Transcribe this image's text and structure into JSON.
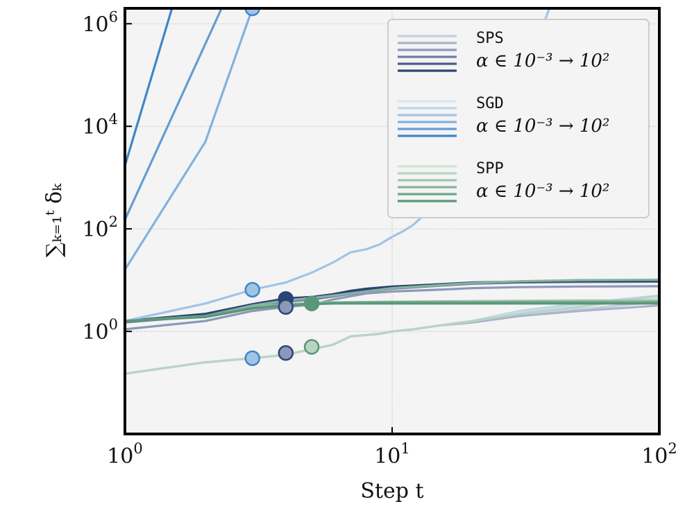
{
  "chart_data": {
    "type": "line",
    "title": "",
    "xlabel": "Step t",
    "ylabel": "∑ₖ₌₁ᵗ δₖ",
    "xscale": "log",
    "yscale": "log",
    "xlim": [
      1,
      100
    ],
    "ylim": [
      0.01,
      2000000
    ],
    "grid": true,
    "legend_position": "top-right",
    "x_ticks": [
      {
        "value": 1,
        "base": "10",
        "exp": "0"
      },
      {
        "value": 10,
        "base": "10",
        "exp": "1"
      },
      {
        "value": 100,
        "base": "10",
        "exp": "2"
      }
    ],
    "y_ticks": [
      {
        "value": 1,
        "base": "10",
        "exp": "0"
      },
      {
        "value": 100,
        "base": "10",
        "exp": "2"
      },
      {
        "value": 10000,
        "base": "10",
        "exp": "4"
      },
      {
        "value": 1000000,
        "base": "10",
        "exp": "6"
      }
    ],
    "legend": [
      {
        "method": "SPS",
        "range_text": "α ∈ 10⁻³ → 10²",
        "colors": [
          "#c5cde0",
          "#a9b3cc",
          "#8c98b7",
          "#6c7ba0",
          "#4a5c89",
          "#2b4477"
        ]
      },
      {
        "method": "SGD",
        "range_text": "α ∈ 10⁻³ → 10²",
        "colors": [
          "#d6e6f4",
          "#bcd6ee",
          "#a0c4e6",
          "#82b1dd",
          "#629dd3",
          "#3f86c7"
        ]
      },
      {
        "method": "SPP",
        "range_text": "α ∈ 10⁻³ → 10²",
        "colors": [
          "#cfe3d7",
          "#b8d4c4",
          "#9fc4b0",
          "#86b39c",
          "#6fa488",
          "#5a9678"
        ]
      }
    ],
    "series": [
      {
        "group": "SPS",
        "color": "#c5cde0",
        "x": [
          1,
          2,
          3,
          4,
          5,
          6,
          7,
          8,
          9,
          10,
          12,
          15,
          20,
          30,
          50,
          100
        ],
        "y": [
          0.15,
          0.25,
          0.3,
          0.35,
          0.45,
          0.55,
          0.8,
          0.85,
          0.9,
          1.0,
          1.1,
          1.3,
          1.5,
          2.0,
          2.7,
          3.8
        ]
      },
      {
        "group": "SPS",
        "color": "#a9b3cc",
        "x": [
          1,
          2,
          3,
          4,
          5,
          6,
          7,
          8,
          9,
          10,
          12,
          15,
          20,
          30,
          50,
          100
        ],
        "y": [
          0.15,
          0.25,
          0.3,
          0.35,
          0.45,
          0.55,
          0.8,
          0.85,
          0.9,
          1.0,
          1.1,
          1.3,
          1.5,
          2.0,
          2.5,
          3.2
        ]
      },
      {
        "group": "SPS",
        "color": "#8c98b7",
        "x": [
          1,
          2,
          3,
          4,
          5,
          6,
          8,
          10,
          15,
          20,
          30,
          50,
          100
        ],
        "y": [
          1.1,
          1.6,
          2.5,
          3.0,
          3.3,
          4.2,
          5.5,
          6.0,
          6.5,
          7.0,
          7.3,
          7.5,
          7.6
        ]
      },
      {
        "group": "SPS",
        "color": "#6c7ba0",
        "x": [
          1,
          2,
          3,
          4,
          5,
          6,
          8,
          10,
          15,
          20,
          30,
          50,
          100
        ],
        "y": [
          1.5,
          2.0,
          3.0,
          3.8,
          4.2,
          4.8,
          6.0,
          6.8,
          7.8,
          8.5,
          9.0,
          9.2,
          9.3
        ]
      },
      {
        "group": "SPS",
        "color": "#4a5c89",
        "x": [
          1,
          2,
          3,
          4,
          5,
          6,
          8,
          10,
          15,
          20,
          30,
          50,
          100
        ],
        "y": [
          1.6,
          2.1,
          3.2,
          4.2,
          4.6,
          5.2,
          6.5,
          7.3,
          8.3,
          8.9,
          9.3,
          9.5,
          9.6
        ]
      },
      {
        "group": "SPS",
        "color": "#2b4477",
        "x": [
          1,
          2,
          3,
          4,
          5,
          6,
          7,
          8,
          10,
          15,
          20,
          30,
          50,
          100
        ],
        "y": [
          1.6,
          2.2,
          3.4,
          4.4,
          4.7,
          5.3,
          6.2,
          6.8,
          7.5,
          8.3,
          9.0,
          9.4,
          9.6,
          9.7
        ]
      },
      {
        "group": "SGD",
        "color": "#d6e6f4",
        "x": [
          1,
          2,
          3,
          4,
          5,
          6,
          7,
          8,
          9,
          10,
          12,
          15,
          20,
          30,
          50,
          100
        ],
        "y": [
          0.15,
          0.25,
          0.3,
          0.35,
          0.45,
          0.55,
          0.8,
          0.85,
          0.9,
          1.0,
          1.1,
          1.3,
          1.6,
          2.3,
          3.2,
          4.5
        ]
      },
      {
        "group": "SGD",
        "color": "#bcd6ee",
        "x": [
          1,
          2,
          3,
          4,
          5,
          6,
          7,
          8,
          9,
          10,
          12,
          15,
          20,
          30,
          50,
          100
        ],
        "y": [
          0.15,
          0.25,
          0.3,
          0.35,
          0.45,
          0.55,
          0.8,
          0.85,
          0.9,
          1.0,
          1.1,
          1.3,
          1.6,
          2.5,
          3.5,
          5.0
        ]
      },
      {
        "group": "SGD",
        "color": "#a0c4e6",
        "x": [
          1,
          2,
          3,
          4,
          5,
          6,
          7,
          8,
          9,
          10,
          11,
          12,
          15,
          20,
          25,
          30,
          35,
          40
        ],
        "y": [
          1.6,
          3.5,
          6.5,
          9.0,
          14,
          22,
          35,
          40,
          50,
          70,
          90,
          120,
          350,
          1800,
          12000,
          80000,
          500000,
          3000000
        ]
      },
      {
        "group": "SGD",
        "color": "#82b1dd",
        "x": [
          1,
          2,
          3
        ],
        "y": [
          16,
          5000,
          2000000
        ]
      },
      {
        "group": "SGD",
        "color": "#629dd3",
        "x": [
          1,
          2.3
        ],
        "y": [
          150,
          2000000
        ]
      },
      {
        "group": "SGD",
        "color": "#3f86c7",
        "x": [
          1,
          1.5
        ],
        "y": [
          1700,
          2000000
        ]
      },
      {
        "group": "SPP",
        "color": "#cfe3d7",
        "x": [
          1,
          2,
          3,
          4,
          5,
          6,
          7,
          8,
          9,
          10,
          12,
          15,
          20,
          30,
          50,
          100
        ],
        "y": [
          0.15,
          0.25,
          0.3,
          0.35,
          0.45,
          0.55,
          0.8,
          0.85,
          0.9,
          1.0,
          1.1,
          1.3,
          1.6,
          2.3,
          3.2,
          4.5
        ]
      },
      {
        "group": "SPP",
        "color": "#b8d4c4",
        "x": [
          1,
          2,
          3,
          4,
          5,
          6,
          7,
          8,
          9,
          10,
          12,
          15,
          20,
          30,
          50,
          100
        ],
        "y": [
          0.15,
          0.25,
          0.3,
          0.35,
          0.45,
          0.55,
          0.8,
          0.85,
          0.9,
          1.0,
          1.1,
          1.3,
          1.6,
          2.2,
          3.0,
          5.0
        ]
      },
      {
        "group": "SPP",
        "color": "#9fc4b0",
        "x": [
          1,
          2,
          3,
          4,
          5,
          6,
          10,
          20,
          50,
          100
        ],
        "y": [
          1.6,
          2.0,
          3.0,
          3.4,
          3.6,
          3.7,
          3.8,
          3.9,
          4.0,
          4.0
        ]
      },
      {
        "group": "SPP",
        "color": "#86b39c",
        "x": [
          1,
          2,
          3,
          4,
          5,
          6,
          8,
          10,
          15,
          20,
          30,
          50,
          100
        ],
        "y": [
          1.6,
          2.0,
          3.2,
          4.0,
          4.5,
          5.0,
          6.0,
          7.0,
          8.0,
          8.8,
          9.5,
          10.0,
          10.2
        ]
      },
      {
        "group": "SPP",
        "color": "#6fa488",
        "x": [
          1,
          2,
          3,
          4,
          5,
          6,
          10,
          20,
          50,
          100
        ],
        "y": [
          1.6,
          2.0,
          2.9,
          3.3,
          3.5,
          3.6,
          3.7,
          3.7,
          3.7,
          3.7
        ]
      },
      {
        "group": "SPP",
        "color": "#5a9678",
        "x": [
          1,
          2,
          3,
          4,
          5,
          6,
          10,
          20,
          50,
          100
        ],
        "y": [
          1.6,
          1.9,
          2.8,
          3.2,
          3.4,
          3.5,
          3.5,
          3.5,
          3.5,
          3.5
        ]
      }
    ],
    "markers": [
      {
        "x": 3,
        "y": 2000000,
        "color": "#a0c4e6",
        "edge": "#3f86c7"
      },
      {
        "x": 3,
        "y": 6.5,
        "color": "#a0c4e6",
        "edge": "#3f86c7"
      },
      {
        "x": 3,
        "y": 0.3,
        "color": "#a0c4e6",
        "edge": "#3f86c7"
      },
      {
        "x": 4,
        "y": 4.3,
        "color": "#2b4477",
        "edge": "#2b4477"
      },
      {
        "x": 4,
        "y": 3.0,
        "color": "#8c98b7",
        "edge": "#2b4477"
      },
      {
        "x": 4,
        "y": 0.38,
        "color": "#8c98b7",
        "edge": "#2b4477"
      },
      {
        "x": 5,
        "y": 3.5,
        "color": "#5a9678",
        "edge": "#5a9678"
      },
      {
        "x": 5,
        "y": 0.5,
        "color": "#b8d4c4",
        "edge": "#5a9678"
      }
    ]
  }
}
